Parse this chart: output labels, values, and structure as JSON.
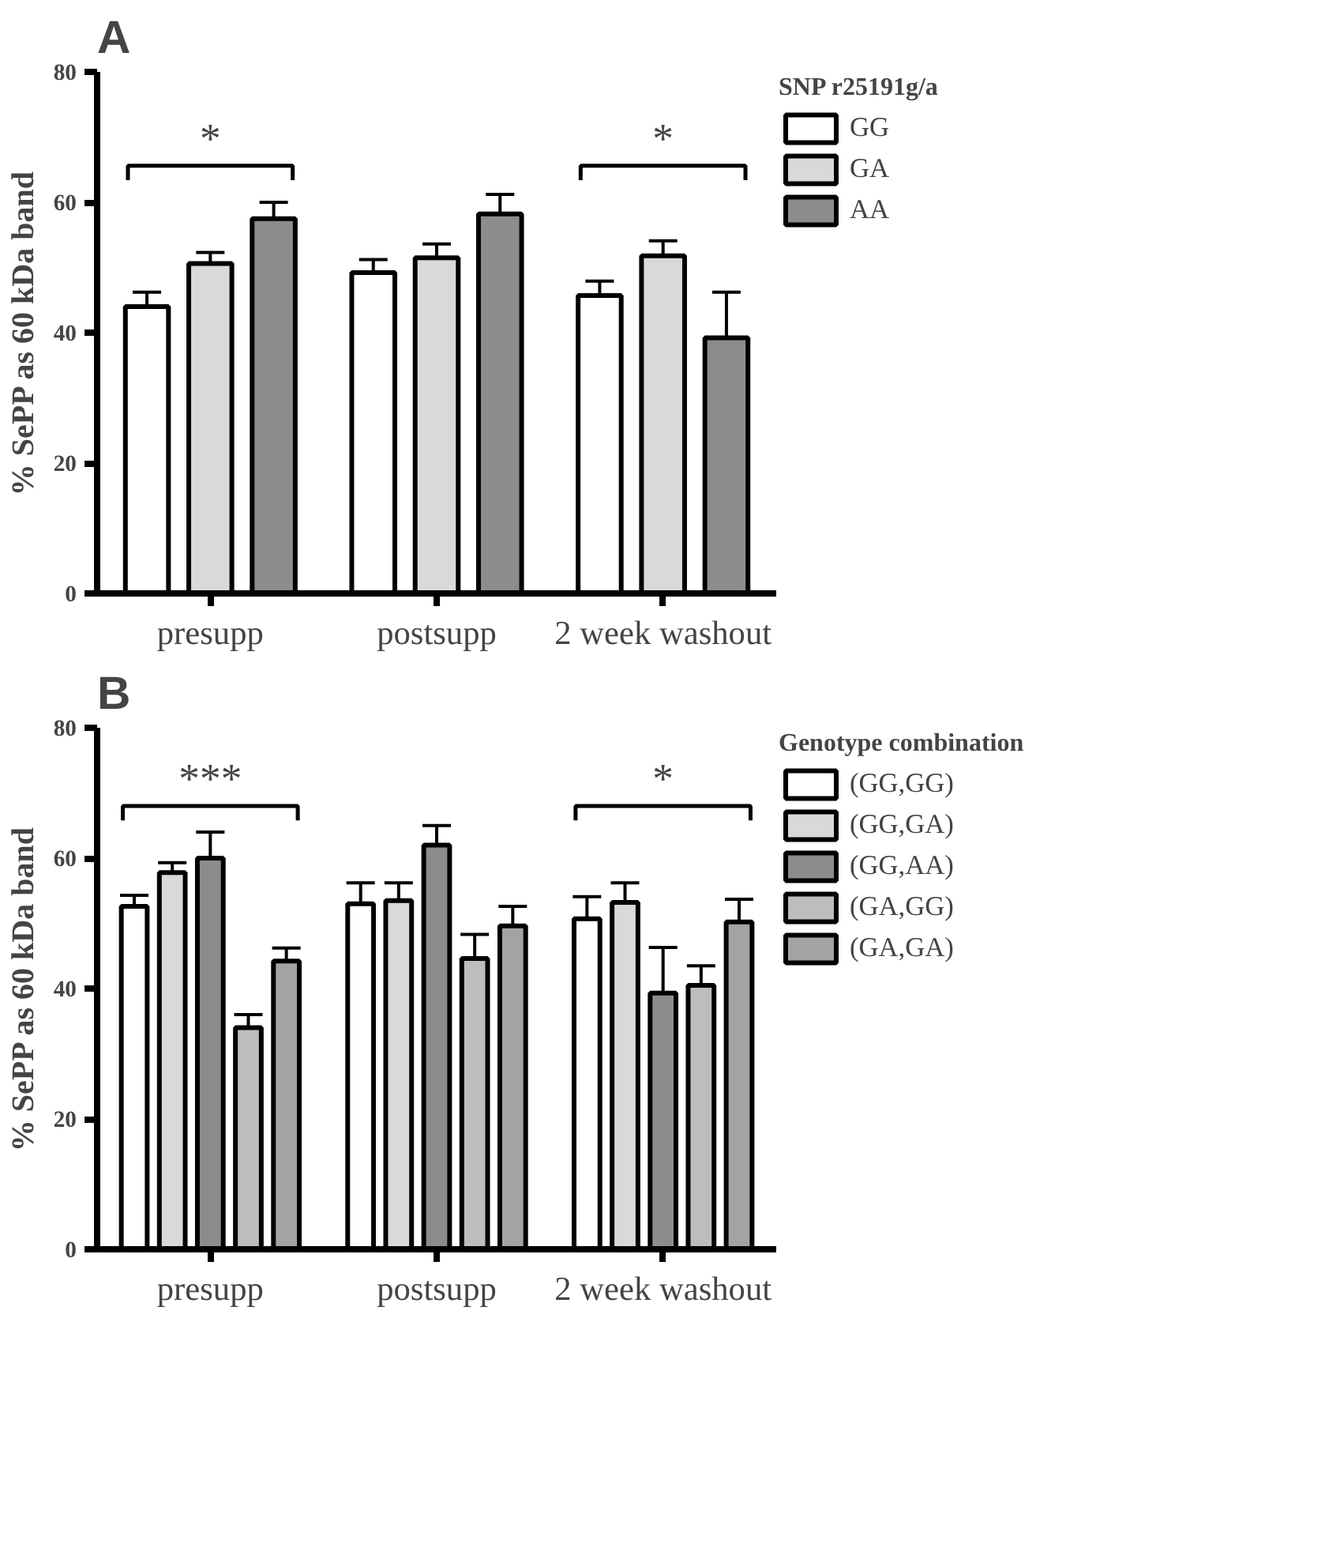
{
  "chart_data": [
    {
      "type": "bar",
      "title": "A",
      "ylabel": "% SePP as 60 kDa band",
      "legend_title": "SNP r25191g/a",
      "categories": [
        "presupp",
        "postsupp",
        "2 week washout"
      ],
      "ylim": [
        0,
        80
      ],
      "yticks": [
        0,
        20,
        40,
        60,
        80
      ],
      "grid": false,
      "legend": "top right",
      "series": [
        {
          "name": "GG",
          "color": "#ffffff",
          "values": [
            44.0,
            49.2,
            45.7
          ],
          "errors": [
            [
              44.0,
              46.2
            ],
            [
              49.2,
              51.2
            ],
            [
              45.7,
              47.9
            ]
          ]
        },
        {
          "name": "GA",
          "color": "#d9d9d9",
          "values": [
            50.6,
            51.5,
            51.8
          ],
          "errors": [
            [
              50.6,
              52.3
            ],
            [
              51.5,
              53.6
            ],
            [
              51.8,
              54.1
            ]
          ]
        },
        {
          "name": "AA",
          "color": "#8c8c8c",
          "values": [
            57.5,
            58.2,
            39.2
          ],
          "errors": [
            [
              57.5,
              60.0
            ],
            [
              58.2,
              61.2
            ],
            [
              39.2,
              46.2
            ]
          ]
        }
      ],
      "annotations": [
        "*",
        "*"
      ]
    },
    {
      "type": "bar",
      "title": "B",
      "ylabel": "% SePP as 60 kDa band",
      "legend_title": "Genotype combination",
      "categories": [
        "presupp",
        "postsupp",
        "2 week washout"
      ],
      "ylim": [
        0,
        80
      ],
      "yticks": [
        0,
        20,
        40,
        60,
        80
      ],
      "grid": false,
      "legend": "top right",
      "series": [
        {
          "name": "(GG,GG)",
          "color": "#ffffff",
          "values": [
            52.6,
            53.0,
            50.7
          ],
          "errors": [
            [
              52.6,
              54.3
            ],
            [
              53.0,
              56.2
            ],
            [
              50.7,
              54.1
            ]
          ]
        },
        {
          "name": "(GG,GA)",
          "color": "#d9d9d9",
          "values": [
            57.8,
            53.5,
            53.2
          ],
          "errors": [
            [
              57.8,
              59.3
            ],
            [
              53.5,
              56.2
            ],
            [
              53.2,
              56.2
            ]
          ]
        },
        {
          "name": "(GG,AA)",
          "color": "#8c8c8c",
          "values": [
            60.0,
            62.0,
            39.3
          ],
          "errors": [
            [
              60.0,
              64.0
            ],
            [
              62.0,
              65.0
            ],
            [
              39.3,
              46.3
            ]
          ]
        },
        {
          "name": "(GA,GG)",
          "color": "#bdbdbd",
          "values": [
            34.0,
            44.6,
            40.5
          ],
          "errors": [
            [
              34.0,
              36.0
            ],
            [
              44.6,
              48.3
            ],
            [
              40.5,
              43.5
            ]
          ]
        },
        {
          "name": "(GA,GA)",
          "color": "#a3a3a3",
          "values": [
            44.2,
            49.6,
            50.2
          ],
          "errors": [
            [
              44.2,
              46.2
            ],
            [
              49.6,
              52.6
            ],
            [
              50.2,
              53.7
            ]
          ]
        }
      ],
      "annotations": [
        "***",
        "*"
      ]
    }
  ]
}
